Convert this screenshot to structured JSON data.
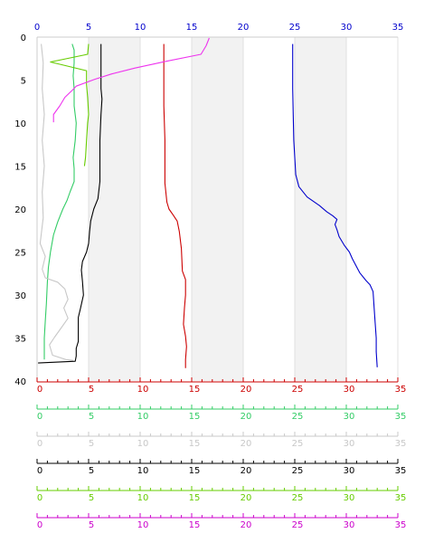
{
  "chart_data": {
    "type": "line",
    "orientation": "depth-profile",
    "grid": "alternating shaded vertical bands",
    "y_axis": {
      "min": 0,
      "max": 40,
      "inverted": true,
      "ticks": [
        0,
        5,
        10,
        15,
        20,
        25,
        30,
        35,
        40
      ],
      "color": "#000000"
    },
    "top_axis": {
      "min": 0,
      "max": 35,
      "ticks": [
        0,
        5,
        10,
        15,
        20,
        25,
        30,
        35
      ],
      "color": "#0000cc"
    },
    "bottom_axes": [
      {
        "min": 0,
        "max": 35,
        "ticks": [
          0,
          5,
          10,
          15,
          20,
          25,
          30,
          35
        ],
        "color": "#cc0000"
      },
      {
        "min": 0,
        "max": 35,
        "ticks": [
          0,
          5,
          10,
          15,
          20,
          25,
          30,
          35
        ],
        "color": "#33cc66"
      },
      {
        "min": 0,
        "max": 35,
        "ticks": [
          0,
          5,
          10,
          15,
          20,
          25,
          30,
          35
        ],
        "color": "#c8c8c8"
      },
      {
        "min": 0,
        "max": 35,
        "ticks": [
          0,
          5,
          10,
          15,
          20,
          25,
          30,
          35
        ],
        "color": "#000000"
      },
      {
        "min": 0,
        "max": 35,
        "ticks": [
          0,
          5,
          10,
          15,
          20,
          25,
          30,
          35
        ],
        "color": "#66cc00"
      },
      {
        "min": 0,
        "max": 35,
        "ticks": [
          0,
          5,
          10,
          15,
          20,
          25,
          30,
          35
        ],
        "color": "#cc00cc"
      }
    ],
    "series": [
      {
        "color": "#0000cc",
        "points": [
          [
            24.8,
            0.8
          ],
          [
            24.8,
            6
          ],
          [
            24.9,
            12
          ],
          [
            25.1,
            16
          ],
          [
            25.4,
            17.4
          ],
          [
            26.2,
            18.6
          ],
          [
            27.4,
            19.6
          ],
          [
            28.1,
            20.3
          ],
          [
            28.7,
            20.8
          ],
          [
            29.1,
            21.2
          ],
          [
            28.9,
            21.8
          ],
          [
            29.1,
            22.4
          ],
          [
            29.3,
            23.2
          ],
          [
            29.8,
            24.2
          ],
          [
            30.3,
            25.0
          ],
          [
            30.6,
            25.8
          ],
          [
            30.9,
            26.5
          ],
          [
            31.3,
            27.4
          ],
          [
            31.9,
            28.3
          ],
          [
            32.3,
            28.8
          ],
          [
            32.6,
            29.6
          ],
          [
            32.7,
            31.5
          ],
          [
            32.8,
            33.2
          ],
          [
            32.9,
            35
          ],
          [
            32.9,
            36.6
          ],
          [
            33.0,
            38.4
          ]
        ]
      },
      {
        "color": "#cc0000",
        "points": [
          [
            12.3,
            0.8
          ],
          [
            12.3,
            8
          ],
          [
            12.4,
            12
          ],
          [
            12.4,
            17
          ],
          [
            12.6,
            19.2
          ],
          [
            12.8,
            20.0
          ],
          [
            13.2,
            20.7
          ],
          [
            13.6,
            21.4
          ],
          [
            13.8,
            22.6
          ],
          [
            14.0,
            24.6
          ],
          [
            14.1,
            27.2
          ],
          [
            14.4,
            28.2
          ],
          [
            14.4,
            30
          ],
          [
            14.3,
            31.5
          ],
          [
            14.2,
            33.4
          ],
          [
            14.4,
            34.8
          ],
          [
            14.5,
            36
          ],
          [
            14.4,
            37.5
          ],
          [
            14.4,
            38.5
          ]
        ]
      },
      {
        "color": "#33cc66",
        "points": [
          [
            3.4,
            0.8
          ],
          [
            3.6,
            1.5
          ],
          [
            3.6,
            3
          ],
          [
            3.5,
            4.5
          ],
          [
            3.6,
            6
          ],
          [
            3.6,
            8
          ],
          [
            3.8,
            10
          ],
          [
            3.7,
            12
          ],
          [
            3.5,
            14
          ],
          [
            3.6,
            15.3
          ],
          [
            3.6,
            16.8
          ],
          [
            3.2,
            18
          ],
          [
            2.9,
            19
          ],
          [
            2.5,
            20
          ],
          [
            2.0,
            21.5
          ],
          [
            1.6,
            23
          ],
          [
            1.3,
            25
          ],
          [
            1.1,
            26.8
          ],
          [
            1.0,
            28.5
          ],
          [
            0.9,
            31
          ],
          [
            0.8,
            33
          ],
          [
            0.7,
            35
          ],
          [
            0.7,
            37.5
          ]
        ]
      },
      {
        "color": "#c8c8c8",
        "points": [
          [
            0.4,
            0.8
          ],
          [
            0.6,
            3
          ],
          [
            0.5,
            6
          ],
          [
            0.7,
            9
          ],
          [
            0.5,
            12
          ],
          [
            0.7,
            15
          ],
          [
            0.5,
            18
          ],
          [
            0.6,
            21
          ],
          [
            0.3,
            24
          ],
          [
            0.8,
            25.5
          ],
          [
            0.5,
            27
          ],
          [
            0.8,
            28
          ],
          [
            2.0,
            28.5
          ],
          [
            2.7,
            29.3
          ],
          [
            3.0,
            30.5
          ],
          [
            2.6,
            31.5
          ],
          [
            3.0,
            32.7
          ],
          [
            2.3,
            33.9
          ],
          [
            1.7,
            34.9
          ],
          [
            1.2,
            35.8
          ],
          [
            1.5,
            37
          ],
          [
            2.8,
            37.5
          ],
          [
            3.5,
            37.6
          ]
        ]
      },
      {
        "color": "#000000",
        "points": [
          [
            6.2,
            0.8
          ],
          [
            6.2,
            3
          ],
          [
            6.2,
            6
          ],
          [
            6.3,
            7.2
          ],
          [
            6.2,
            9
          ],
          [
            6.1,
            12
          ],
          [
            6.1,
            14
          ],
          [
            6.1,
            16.8
          ],
          [
            5.9,
            18.8
          ],
          [
            5.5,
            20
          ],
          [
            5.2,
            21.4
          ],
          [
            5.1,
            22.6
          ],
          [
            5.0,
            24
          ],
          [
            4.8,
            25
          ],
          [
            4.4,
            26.1
          ],
          [
            4.3,
            27.1
          ],
          [
            4.4,
            28.4
          ],
          [
            4.5,
            30
          ],
          [
            4.2,
            31.6
          ],
          [
            4.0,
            32.6
          ],
          [
            4.0,
            34
          ],
          [
            4.0,
            35.4
          ],
          [
            3.8,
            36.2
          ],
          [
            3.8,
            37.1
          ],
          [
            3.7,
            37.7
          ],
          [
            0.1,
            37.9
          ]
        ]
      },
      {
        "color": "#66cc00",
        "points": [
          [
            5.0,
            0.8
          ],
          [
            4.9,
            2
          ],
          [
            1.3,
            2.9
          ],
          [
            4.8,
            3.9
          ],
          [
            4.8,
            5.5
          ],
          [
            4.9,
            7
          ],
          [
            5.0,
            9
          ],
          [
            4.9,
            10
          ],
          [
            4.8,
            12
          ],
          [
            4.7,
            14
          ],
          [
            4.6,
            15
          ]
        ]
      },
      {
        "color": "#ee33ee",
        "points": [
          [
            16.7,
            0.1
          ],
          [
            16.4,
            1
          ],
          [
            15.9,
            2
          ],
          [
            12.6,
            2.8
          ],
          [
            9.5,
            3.6
          ],
          [
            7.2,
            4.3
          ],
          [
            5.6,
            4.9
          ],
          [
            3.8,
            5.7
          ],
          [
            3.4,
            6.2
          ],
          [
            2.7,
            7
          ],
          [
            2.2,
            8
          ],
          [
            1.6,
            9
          ],
          [
            1.6,
            9.9
          ]
        ]
      }
    ]
  }
}
